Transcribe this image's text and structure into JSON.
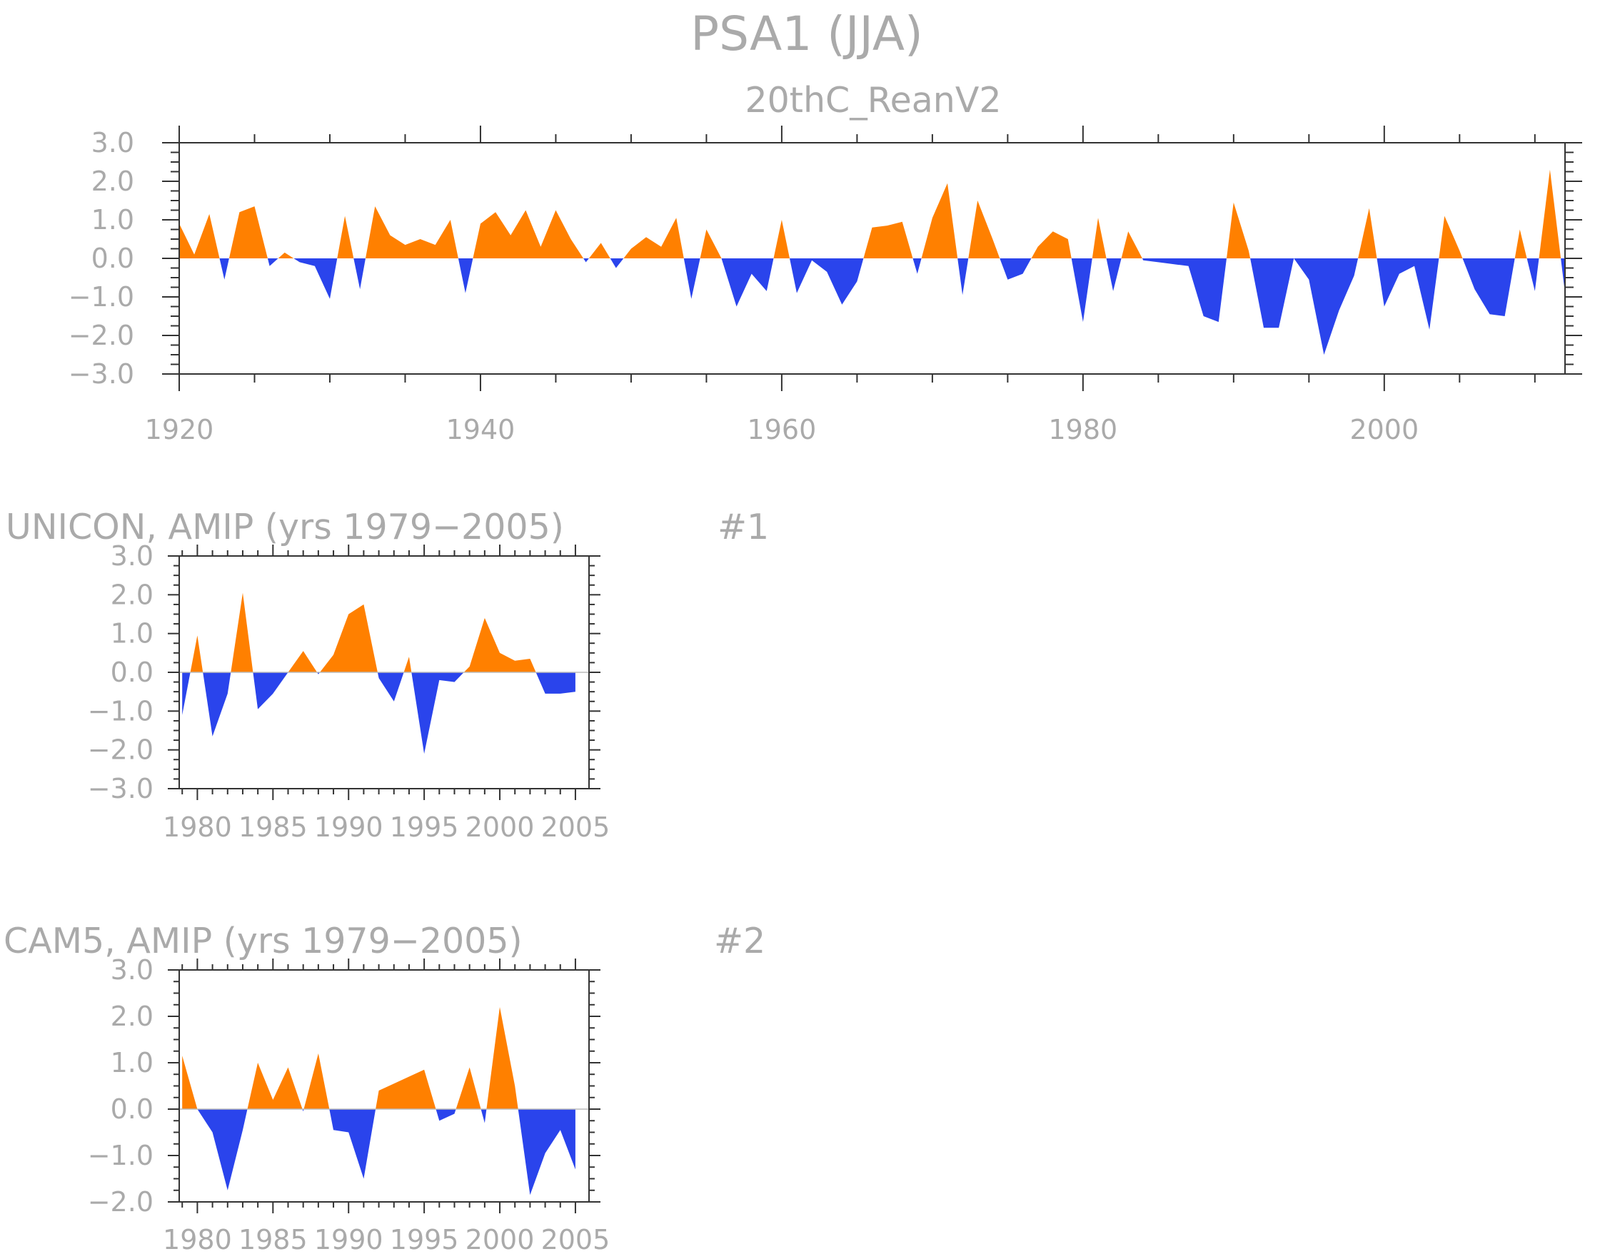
{
  "title": "PSA1 (JJA)",
  "colors": {
    "positive": "#ff8000",
    "negative": "#2a44ec"
  },
  "chart_data": [
    {
      "type": "area",
      "name": "20thC_ReanV2",
      "title": "20thC_ReanV2",
      "label": "",
      "xlim": [
        1920,
        2012
      ],
      "ylim": [
        -3,
        3
      ],
      "xticks": [
        1920,
        1940,
        1960,
        1980,
        2000
      ],
      "yticks": [
        -3,
        -2,
        -1,
        0,
        1,
        2,
        3
      ],
      "ytick_labels": [
        "−3.0",
        "−2.0",
        "−1.0",
        "0.0",
        "1.0",
        "2.0",
        "3.0"
      ],
      "x_start": 1920,
      "values": [
        0.9,
        0.1,
        1.15,
        -0.55,
        1.2,
        1.35,
        -0.2,
        0.15,
        -0.1,
        -0.2,
        -1.05,
        1.1,
        -0.8,
        1.35,
        0.6,
        0.35,
        0.5,
        0.35,
        1.0,
        -0.9,
        0.9,
        1.2,
        0.6,
        1.25,
        0.3,
        1.25,
        0.5,
        -0.1,
        0.4,
        -0.25,
        0.25,
        0.55,
        0.3,
        1.05,
        -1.05,
        0.75,
        0.0,
        -1.25,
        -0.4,
        -0.85,
        1.0,
        -0.9,
        -0.05,
        -0.35,
        -1.2,
        -0.6,
        0.8,
        0.85,
        0.95,
        -0.4,
        1.05,
        1.95,
        -0.95,
        1.5,
        0.5,
        -0.55,
        -0.4,
        0.3,
        0.7,
        0.5,
        -1.65,
        1.05,
        -0.85,
        0.7,
        -0.05,
        -0.1,
        -0.15,
        -0.2,
        -1.5,
        -1.65,
        1.45,
        0.2,
        -1.8,
        -1.8,
        0.0,
        -0.55,
        -2.5,
        -1.35,
        -0.45,
        1.3,
        -1.25,
        -0.4,
        -0.2,
        -1.85,
        1.1,
        0.2,
        -0.8,
        -1.45,
        -1.5,
        0.75,
        -0.85,
        2.3,
        -0.9
      ]
    },
    {
      "type": "area",
      "name": "UNICON, AMIP (yrs 1979-2005)",
      "title": "UNICON, AMIP (yrs 1979−2005)",
      "label": "#1",
      "xlim": [
        1978.8,
        2005.9
      ],
      "ylim": [
        -3,
        3
      ],
      "xticks": [
        1980,
        1985,
        1990,
        1995,
        2000,
        2005
      ],
      "yticks": [
        -3,
        -2,
        -1,
        0,
        1,
        2,
        3
      ],
      "ytick_labels": [
        "−3.0",
        "−2.0",
        "−1.0",
        "0.0",
        "1.0",
        "2.0",
        "3.0"
      ],
      "x_start": 1979,
      "values": [
        -1.1,
        0.95,
        -1.65,
        -0.55,
        2.05,
        -0.95,
        -0.55,
        0.0,
        0.55,
        -0.05,
        0.45,
        1.5,
        1.75,
        -0.15,
        -0.75,
        0.4,
        -2.1,
        -0.2,
        -0.25,
        0.15,
        1.4,
        0.5,
        0.3,
        0.35,
        -0.55,
        -0.55,
        -0.5
      ]
    },
    {
      "type": "area",
      "name": "CAM5, AMIP (yrs 1979-2005)",
      "title": "CAM5, AMIP (yrs 1979−2005)",
      "label": "#2",
      "xlim": [
        1978.8,
        2005.9
      ],
      "ylim": [
        -2,
        3
      ],
      "xticks": [
        1980,
        1985,
        1990,
        1995,
        2000,
        2005
      ],
      "yticks": [
        -2,
        -1,
        0,
        1,
        2,
        3
      ],
      "ytick_labels": [
        "−2.0",
        "−1.0",
        "0.0",
        "1.0",
        "2.0",
        "3.0"
      ],
      "x_start": 1979,
      "values": [
        1.15,
        0.0,
        -0.5,
        -1.75,
        -0.45,
        1.0,
        0.2,
        0.9,
        -0.05,
        1.2,
        -0.45,
        -0.5,
        -1.5,
        0.4,
        0.55,
        0.7,
        0.85,
        -0.25,
        -0.1,
        0.9,
        -0.3,
        2.2,
        0.5,
        -1.85,
        -0.95,
        -0.45,
        -1.3
      ]
    }
  ]
}
